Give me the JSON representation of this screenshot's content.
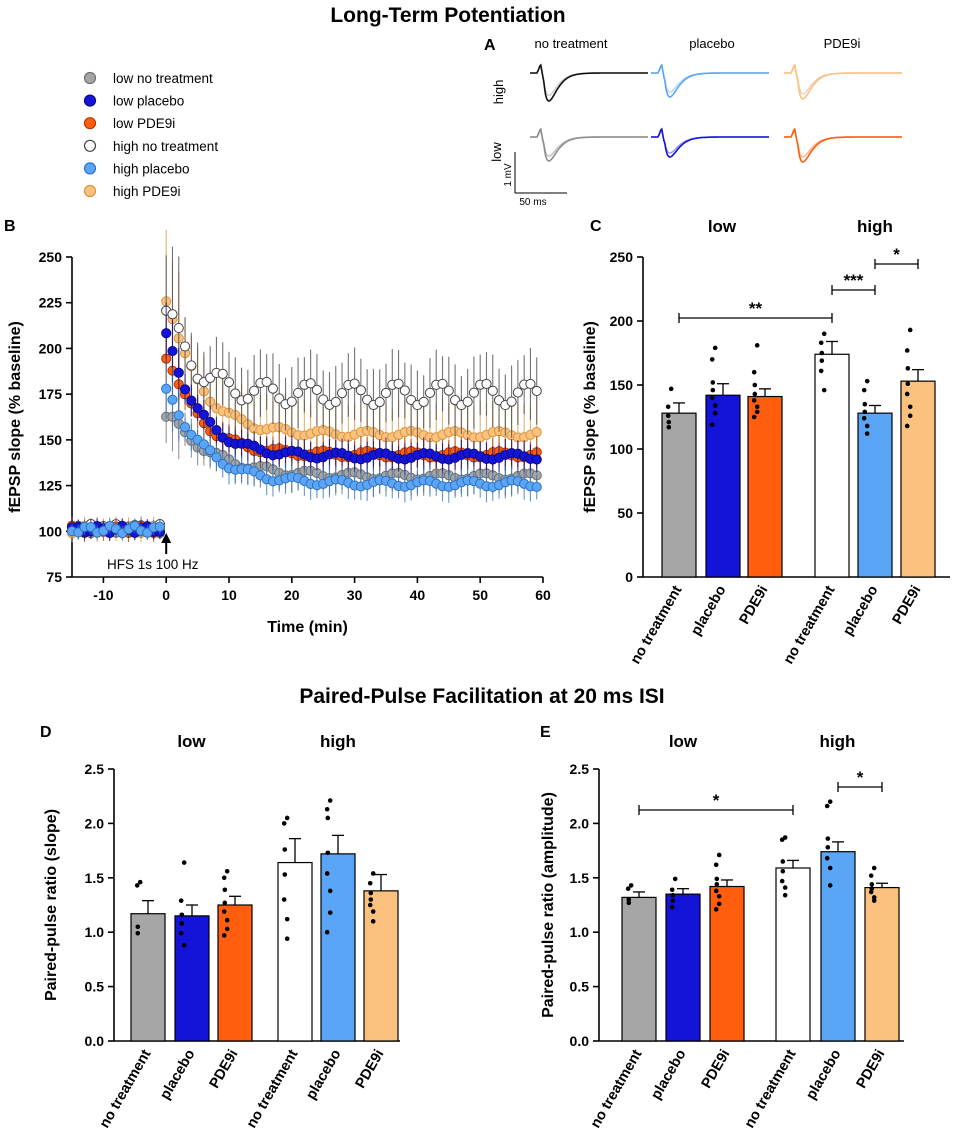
{
  "titles": {
    "ltp": "Long-Term Potentiation",
    "ppf": "Paired-Pulse Facilitation at 20 ms ISI"
  },
  "panel_letters": {
    "A": "A",
    "B": "B",
    "C": "C",
    "D": "D",
    "E": "E"
  },
  "legend": [
    {
      "label": "low no treatment",
      "fill": "#a6a6a6",
      "stroke": "#6f6f6f"
    },
    {
      "label": "low placebo",
      "fill": "#1414d8",
      "stroke": "#0a0a8a"
    },
    {
      "label": "low PDE9i",
      "fill": "#ff5e0e",
      "stroke": "#b03c00"
    },
    {
      "label": "high no treatment",
      "fill": "#ffffff",
      "stroke": "#444444"
    },
    {
      "label": "high placebo",
      "fill": "#5aa5f5",
      "stroke": "#2f72c0"
    },
    {
      "label": "high PDE9i",
      "fill": "#fcc17f",
      "stroke": "#d8963c"
    }
  ],
  "colors": {
    "low_no_treatment": "#a6a6a6",
    "low_placebo": "#1414d8",
    "low_pde9i": "#ff5e0e",
    "high_no_treatment": "#ffffff",
    "high_placebo": "#5aa5f5",
    "high_pde9i": "#fcc17f"
  },
  "chart_data": [
    {
      "panel": "A",
      "type": "line",
      "columns": [
        "no treatment",
        "placebo",
        "PDE9i"
      ],
      "rows": [
        "high",
        "low"
      ],
      "scale_bar": {
        "voltage": "1 mV",
        "time": "50 ms"
      }
    },
    {
      "panel": "B",
      "type": "scatter",
      "xlabel": "Time (min)",
      "ylabel": "fEPSP slope (% baseline)",
      "xlim": [
        -15,
        60
      ],
      "ylim": [
        75,
        250
      ],
      "xticks": [
        -10,
        0,
        10,
        20,
        30,
        40,
        50,
        60
      ],
      "yticks": [
        75,
        100,
        125,
        150,
        175,
        200,
        225,
        250
      ],
      "annotation": "HFS 1s 100 Hz",
      "stimulus_time": 0,
      "series": [
        {
          "name": "low no treatment",
          "baseline": 101,
          "peak": 166,
          "plateau": 130,
          "tau": 7,
          "err": 9
        },
        {
          "name": "low placebo",
          "baseline": 101,
          "peak": 211,
          "plateau": 141,
          "tau": 5,
          "err": 8
        },
        {
          "name": "low PDE9i",
          "baseline": 101,
          "peak": 200,
          "plateau": 142,
          "tau": 5,
          "err": 8
        },
        {
          "name": "high no treatment",
          "baseline": 102,
          "peak": 225,
          "plateau": 175,
          "tau": 4,
          "err": 18
        },
        {
          "name": "high placebo",
          "baseline": 101,
          "peak": 180,
          "plateau": 126,
          "tau": 6,
          "err": 8
        },
        {
          "name": "high PDE9i",
          "baseline": 101,
          "peak": 232,
          "plateau": 153,
          "tau": 5,
          "err": 18
        }
      ]
    },
    {
      "panel": "C",
      "type": "bar",
      "ylabel": "fEPSP slope (% baseline)",
      "ylim": [
        0,
        250
      ],
      "yticks": [
        0,
        50,
        100,
        150,
        200,
        250
      ],
      "groups": [
        "low",
        "high"
      ],
      "categories": [
        "no treatment",
        "placebo",
        "PDE9i",
        "no treatment",
        "placebo",
        "PDE9i"
      ],
      "values": [
        128,
        142,
        141,
        174,
        128,
        153
      ],
      "errors": [
        8,
        9,
        6,
        10,
        6,
        9
      ],
      "points": [
        [
          147,
          126,
          121,
          117,
          133
        ],
        [
          179,
          170,
          152,
          146,
          140,
          134,
          128,
          119
        ],
        [
          181,
          160,
          150,
          143,
          138,
          133,
          129,
          125
        ],
        [
          190,
          183,
          175,
          169,
          161,
          146
        ],
        [
          153,
          146,
          135,
          129,
          124,
          118,
          112
        ],
        [
          193,
          177,
          163,
          151,
          143,
          133,
          126,
          118
        ]
      ],
      "significance": [
        {
          "from": 0,
          "to": 3,
          "label": "**"
        },
        {
          "from": 3,
          "to": 4,
          "label": "***"
        },
        {
          "from": 4,
          "to": 5,
          "label": "*"
        }
      ]
    },
    {
      "panel": "D",
      "type": "bar",
      "ylabel": "Paired-pulse ratio (slope)",
      "ylim": [
        0,
        2.5
      ],
      "yticks": [
        "0.0",
        "0.5",
        "1.0",
        "1.5",
        "2.0",
        "2.5"
      ],
      "groups": [
        "low",
        "high"
      ],
      "categories": [
        "no treatment",
        "placebo",
        "PDE9i",
        "no treatment",
        "placebo",
        "PDE9i"
      ],
      "values": [
        1.17,
        1.15,
        1.25,
        1.64,
        1.72,
        1.38
      ],
      "errors": [
        0.12,
        0.1,
        0.08,
        0.22,
        0.17,
        0.15
      ],
      "points": [
        [
          1.46,
          1.43,
          1.05,
          0.99
        ],
        [
          1.64,
          1.29,
          1.16,
          1.08,
          0.99,
          0.88
        ],
        [
          1.56,
          1.5,
          1.39,
          1.27,
          1.19,
          1.11,
          1.03,
          0.97
        ],
        [
          2.05,
          2.0,
          1.76,
          1.53,
          1.3,
          1.12,
          0.94
        ],
        [
          2.21,
          2.13,
          2.05,
          1.73,
          1.54,
          1.38,
          1.18,
          1.0
        ],
        [
          1.54,
          1.45,
          1.36,
          1.3,
          1.25,
          1.19,
          1.1
        ]
      ],
      "significance": []
    },
    {
      "panel": "E",
      "type": "bar",
      "ylabel": "Paired-pulse ratio (amplitude)",
      "ylim": [
        0,
        2.5
      ],
      "yticks": [
        "0.0",
        "0.5",
        "1.0",
        "1.5",
        "2.0",
        "2.5"
      ],
      "groups": [
        "low",
        "high"
      ],
      "categories": [
        "no treatment",
        "placebo",
        "PDE9i",
        "no treatment",
        "placebo",
        "PDE9i"
      ],
      "values": [
        1.32,
        1.35,
        1.42,
        1.59,
        1.74,
        1.41
      ],
      "errors": [
        0.05,
        0.05,
        0.06,
        0.07,
        0.09,
        0.04
      ],
      "points": [
        [
          1.43,
          1.4,
          1.3,
          1.27
        ],
        [
          1.49,
          1.39,
          1.34,
          1.29,
          1.23
        ],
        [
          1.71,
          1.62,
          1.49,
          1.44,
          1.38,
          1.33,
          1.26,
          1.21
        ],
        [
          1.87,
          1.85,
          1.65,
          1.56,
          1.47,
          1.41,
          1.34
        ],
        [
          2.2,
          2.16,
          1.86,
          1.78,
          1.68,
          1.59,
          1.43
        ],
        [
          1.59,
          1.52,
          1.44,
          1.4,
          1.37,
          1.32,
          1.29
        ]
      ],
      "significance": [
        {
          "from": 0,
          "to": 3,
          "label": "*"
        },
        {
          "from": 4,
          "to": 5,
          "label": "*"
        }
      ]
    }
  ]
}
